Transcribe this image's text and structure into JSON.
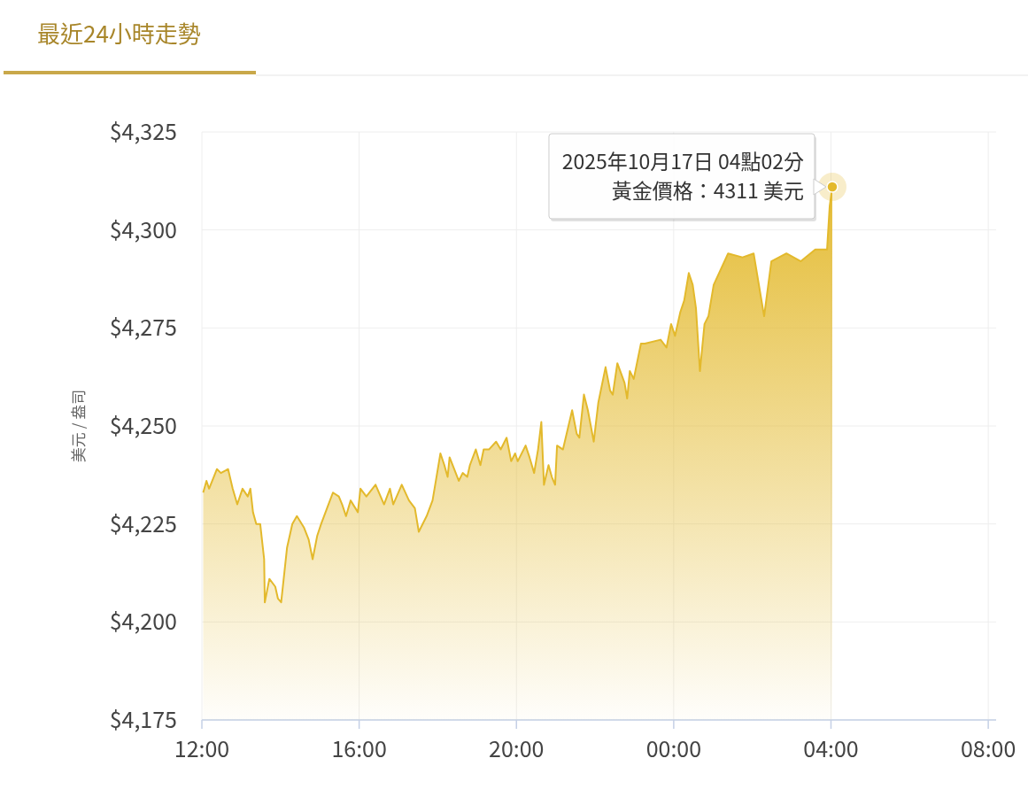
{
  "chart_data": {
    "type": "area",
    "title": "最近24小時走勢",
    "ylabel": "美元 / 盎司",
    "x": [
      "2025-10-16T12:02",
      "2025-10-16T12:07",
      "2025-10-16T12:11",
      "2025-10-16T12:23",
      "2025-10-16T12:29",
      "2025-10-16T12:40",
      "2025-10-16T12:47",
      "2025-10-16T12:54",
      "2025-10-16T13:02",
      "2025-10-16T13:10",
      "2025-10-16T13:14",
      "2025-10-16T13:18",
      "2025-10-16T13:23",
      "2025-10-16T13:29",
      "2025-10-16T13:35",
      "2025-10-16T13:36",
      "2025-10-16T13:43",
      "2025-10-16T13:52",
      "2025-10-16T13:56",
      "2025-10-16T14:01",
      "2025-10-16T14:10",
      "2025-10-16T14:18",
      "2025-10-16T14:25",
      "2025-10-16T14:36",
      "2025-10-16T14:43",
      "2025-10-16T14:49",
      "2025-10-16T14:56",
      "2025-10-16T15:02",
      "2025-10-16T15:11",
      "2025-10-16T15:20",
      "2025-10-16T15:29",
      "2025-10-16T15:34",
      "2025-10-16T15:40",
      "2025-10-16T15:47",
      "2025-10-16T15:58",
      "2025-10-16T16:02",
      "2025-10-16T16:11",
      "2025-10-16T16:25",
      "2025-10-16T16:38",
      "2025-10-16T16:47",
      "2025-10-16T16:52",
      "2025-10-16T17:05",
      "2025-10-16T17:16",
      "2025-10-16T17:25",
      "2025-10-16T17:31",
      "2025-10-16T17:43",
      "2025-10-16T17:52",
      "2025-10-16T17:58",
      "2025-10-16T18:04",
      "2025-10-16T18:10",
      "2025-10-16T18:15",
      "2025-10-16T18:18",
      "2025-10-16T18:25",
      "2025-10-16T18:32",
      "2025-10-16T18:38",
      "2025-10-16T18:45",
      "2025-10-16T18:49",
      "2025-10-16T18:58",
      "2025-10-16T19:05",
      "2025-10-16T19:10",
      "2025-10-16T19:18",
      "2025-10-16T19:29",
      "2025-10-16T19:36",
      "2025-10-16T19:45",
      "2025-10-16T19:52",
      "2025-10-16T19:58",
      "2025-10-16T20:02",
      "2025-10-16T20:14",
      "2025-10-16T20:20",
      "2025-10-16T20:27",
      "2025-10-16T20:33",
      "2025-10-16T20:38",
      "2025-10-16T20:42",
      "2025-10-16T20:49",
      "2025-10-16T20:54",
      "2025-10-16T20:59",
      "2025-10-16T21:02",
      "2025-10-16T21:11",
      "2025-10-16T21:25",
      "2025-10-16T21:32",
      "2025-10-16T21:36",
      "2025-10-16T21:43",
      "2025-10-16T21:49",
      "2025-10-16T21:58",
      "2025-10-16T22:05",
      "2025-10-16T22:16",
      "2025-10-16T22:23",
      "2025-10-16T22:27",
      "2025-10-16T22:34",
      "2025-10-16T22:45",
      "2025-10-16T22:49",
      "2025-10-16T22:53",
      "2025-10-16T22:59",
      "2025-10-16T23:10",
      "2025-10-16T23:16",
      "2025-10-16T23:40",
      "2025-10-16T23:49",
      "2025-10-16T23:56",
      "2025-10-17T00:02",
      "2025-10-17T00:10",
      "2025-10-17T00:16",
      "2025-10-17T00:23",
      "2025-10-17T00:29",
      "2025-10-17T00:34",
      "2025-10-17T00:40",
      "2025-10-17T00:47",
      "2025-10-17T00:53",
      "2025-10-17T01:01",
      "2025-10-17T01:23",
      "2025-10-17T01:45",
      "2025-10-17T02:02",
      "2025-10-17T02:18",
      "2025-10-17T02:29",
      "2025-10-17T02:52",
      "2025-10-17T03:14",
      "2025-10-17T03:36",
      "2025-10-17T03:54",
      "2025-10-17T03:58",
      "2025-10-17T04:02"
    ],
    "series": [
      {
        "color": "#e3b92c",
        "values": [
          4233,
          4236,
          4234,
          4239,
          4238,
          4239,
          4234,
          4230,
          4234,
          4232,
          4234,
          4228,
          4225,
          4225,
          4216,
          4205,
          4211,
          4209,
          4206,
          4205,
          4219,
          4225,
          4227,
          4224,
          4221,
          4216,
          4222,
          4225,
          4229,
          4233,
          4232,
          4230,
          4227,
          4231,
          4228,
          4234,
          4232,
          4235,
          4230,
          4234,
          4230,
          4235,
          4231,
          4229,
          4223,
          4227,
          4231,
          4237,
          4243,
          4240,
          4237,
          4242,
          4239,
          4236,
          4238,
          4237,
          4240,
          4244,
          4240,
          4244,
          4244,
          4246,
          4244,
          4247,
          4241,
          4243,
          4241,
          4245,
          4242,
          4238,
          4244,
          4251,
          4235,
          4240,
          4237,
          4235,
          4245,
          4244,
          4254,
          4248,
          4247,
          4258,
          4254,
          4246,
          4256,
          4265,
          4259,
          4258,
          4266,
          4261,
          4257,
          4264,
          4262,
          4271,
          4271,
          4272,
          4270,
          4276,
          4273,
          4279,
          4282,
          4289,
          4286,
          4280,
          4264,
          4276,
          4278,
          4286,
          4294,
          4293,
          4294,
          4278,
          4292,
          4294,
          4292,
          4295,
          4295,
          4306,
          4311
        ]
      }
    ],
    "xlim": [
      "2025-10-16T12:00",
      "2025-10-17T08:12"
    ],
    "xticks": [
      {
        "value": "2025-10-16T12:00",
        "label": "12:00"
      },
      {
        "value": "2025-10-16T16:00",
        "label": "16:00"
      },
      {
        "value": "2025-10-16T20:00",
        "label": "20:00"
      },
      {
        "value": "2025-10-17T00:00",
        "label": "00:00"
      },
      {
        "value": "2025-10-17T04:00",
        "label": "04:00"
      },
      {
        "value": "2025-10-17T08:00",
        "label": "08:00"
      }
    ],
    "ylim": [
      4175,
      4325
    ],
    "yticks": [
      {
        "value": 4175,
        "label": "$4,175"
      },
      {
        "value": 4200,
        "label": "$4,200"
      },
      {
        "value": 4225,
        "label": "$4,225"
      },
      {
        "value": 4250,
        "label": "$4,250"
      },
      {
        "value": 4275,
        "label": "$4,275"
      },
      {
        "value": 4300,
        "label": "$4,300"
      },
      {
        "value": 4325,
        "label": "$4,325"
      }
    ],
    "grid": true,
    "line_style": "solid",
    "marker": "none",
    "annotations": [
      {
        "text": "2025年10月17日 04點02分",
        "x": "2025-10-17T04:02",
        "y": 4311
      },
      {
        "text": "黃金價格：4311 美元",
        "x": "2025-10-17T04:02",
        "y": 4311
      }
    ]
  }
}
